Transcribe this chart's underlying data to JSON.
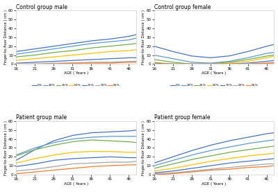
{
  "ages": [
    16,
    21,
    26,
    31,
    36,
    41,
    46,
    48
  ],
  "control_male": {
    "5%": [
      14,
      17,
      20,
      23,
      26,
      28,
      31,
      33
    ],
    "10%": [
      11,
      14,
      17,
      20,
      23,
      25,
      27,
      29
    ],
    "25%": [
      8,
      10,
      13,
      15,
      18,
      20,
      22,
      23
    ],
    "50%": [
      4,
      6,
      8,
      10,
      12,
      14,
      15,
      16
    ],
    "75%": [
      1,
      2,
      3,
      4,
      5,
      6,
      7,
      7
    ],
    "90%": [
      0,
      0,
      1,
      1,
      2,
      2,
      3,
      3
    ],
    "95%": [
      0,
      0,
      0,
      1,
      1,
      1,
      2,
      2
    ]
  },
  "control_female": {
    "5%": [
      20,
      14,
      9,
      7,
      9,
      14,
      20,
      22
    ],
    "10%": [
      10,
      6,
      2,
      1,
      3,
      7,
      12,
      13
    ],
    "25%": [
      5,
      2,
      0,
      0,
      2,
      5,
      9,
      10
    ],
    "50%": [
      2,
      0,
      0,
      0,
      1,
      3,
      7,
      9
    ],
    "75%": [
      1,
      0,
      0,
      0,
      0,
      1,
      3,
      4
    ],
    "90%": [
      0,
      0,
      0,
      0,
      0,
      0,
      1,
      2
    ],
    "95%": [
      0,
      0,
      0,
      0,
      0,
      0,
      1,
      1
    ]
  },
  "patient_male": {
    "5%": [
      16,
      28,
      38,
      44,
      47,
      48,
      49,
      50
    ],
    "10%": [
      22,
      30,
      36,
      40,
      42,
      43,
      43,
      43
    ],
    "25%": [
      21,
      28,
      33,
      37,
      39,
      38,
      37,
      36
    ],
    "50%": [
      13,
      18,
      22,
      25,
      26,
      26,
      25,
      25
    ],
    "75%": [
      9,
      12,
      16,
      18,
      19,
      20,
      19,
      19
    ],
    "90%": [
      4,
      6,
      9,
      12,
      13,
      14,
      14,
      15
    ],
    "95%": [
      1,
      3,
      5,
      7,
      9,
      10,
      11,
      11
    ]
  },
  "patient_female": {
    "5%": [
      13,
      20,
      27,
      33,
      38,
      42,
      46,
      47
    ],
    "10%": [
      10,
      16,
      22,
      27,
      31,
      35,
      38,
      39
    ],
    "25%": [
      7,
      12,
      17,
      21,
      25,
      28,
      31,
      32
    ],
    "50%": [
      4,
      7,
      11,
      15,
      18,
      21,
      23,
      24
    ],
    "75%": [
      2,
      4,
      7,
      10,
      13,
      15,
      17,
      18
    ],
    "90%": [
      1,
      2,
      4,
      6,
      8,
      10,
      12,
      12
    ],
    "95%": [
      0,
      1,
      3,
      5,
      6,
      8,
      9,
      10
    ]
  },
  "titles": [
    "Control group male",
    "Control group female",
    "Patient group male",
    "Patient group female"
  ],
  "xlabel": "AGE ( Years )",
  "ylabel": "Finger-to-floor Distance ( cm )",
  "ylim_control": [
    0,
    60
  ],
  "ylim_patient": [
    0,
    60
  ],
  "yticks_control": [
    0,
    10,
    20,
    30,
    40,
    50,
    60
  ],
  "yticks_patient": [
    0,
    10,
    20,
    30,
    40,
    50,
    60
  ],
  "xticks": [
    16,
    21,
    26,
    31,
    36,
    41,
    46
  ],
  "legend_labels": [
    "5%",
    "10%",
    "25%",
    "50%",
    "75%",
    "90%",
    "95%"
  ],
  "line_colors": {
    "5%": "#4472C4",
    "10%": "#5B9BD5",
    "25%": "#70AD47",
    "50%": "#FFC000",
    "75%": "#4472C4",
    "90%": "#A5A5A5",
    "95%": "#ED7D31"
  },
  "bg_color": "#FFFFFF",
  "border_color": "#CCCCCC"
}
